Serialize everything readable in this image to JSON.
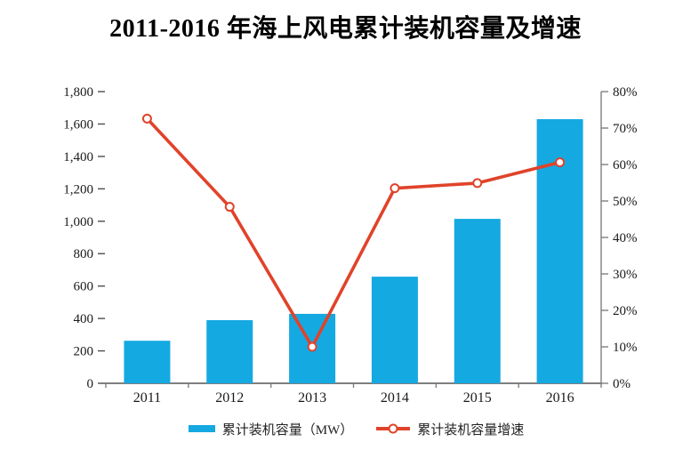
{
  "title": "2011-2016 年海上风电累计装机容量及增速",
  "chart_data": {
    "type": "combo-bar-line",
    "categories": [
      "2011",
      "2012",
      "2013",
      "2014",
      "2015",
      "2016"
    ],
    "series": [
      {
        "name": "累计装机容量（MW）",
        "type": "bar",
        "axis": "left",
        "color": "#15a9e2",
        "values": [
          262.6,
          389.6,
          428.6,
          657.9,
          1014.7,
          1630
        ]
      },
      {
        "name": "累计装机容量增速",
        "type": "line",
        "axis": "right",
        "color": "#e0432a",
        "marker": "circle",
        "marker_fill": "#ffffff",
        "values": [
          72.6,
          48.4,
          10.0,
          53.5,
          54.9,
          60.6
        ]
      }
    ],
    "left_axis": {
      "min": 0,
      "max": 1800,
      "step": 200,
      "tick_labels": [
        "0",
        "200",
        "400",
        "600",
        "800",
        "1,000",
        "1,200",
        "1,400",
        "1,600",
        "1,800"
      ]
    },
    "right_axis": {
      "min": 0,
      "max": 80,
      "step": 10,
      "tick_labels": [
        "0%",
        "10%",
        "20%",
        "30%",
        "40%",
        "50%",
        "60%",
        "70%",
        "80%"
      ]
    },
    "grid": false,
    "legend_position": "bottom",
    "axis_line_color": "#7f7f7f"
  }
}
